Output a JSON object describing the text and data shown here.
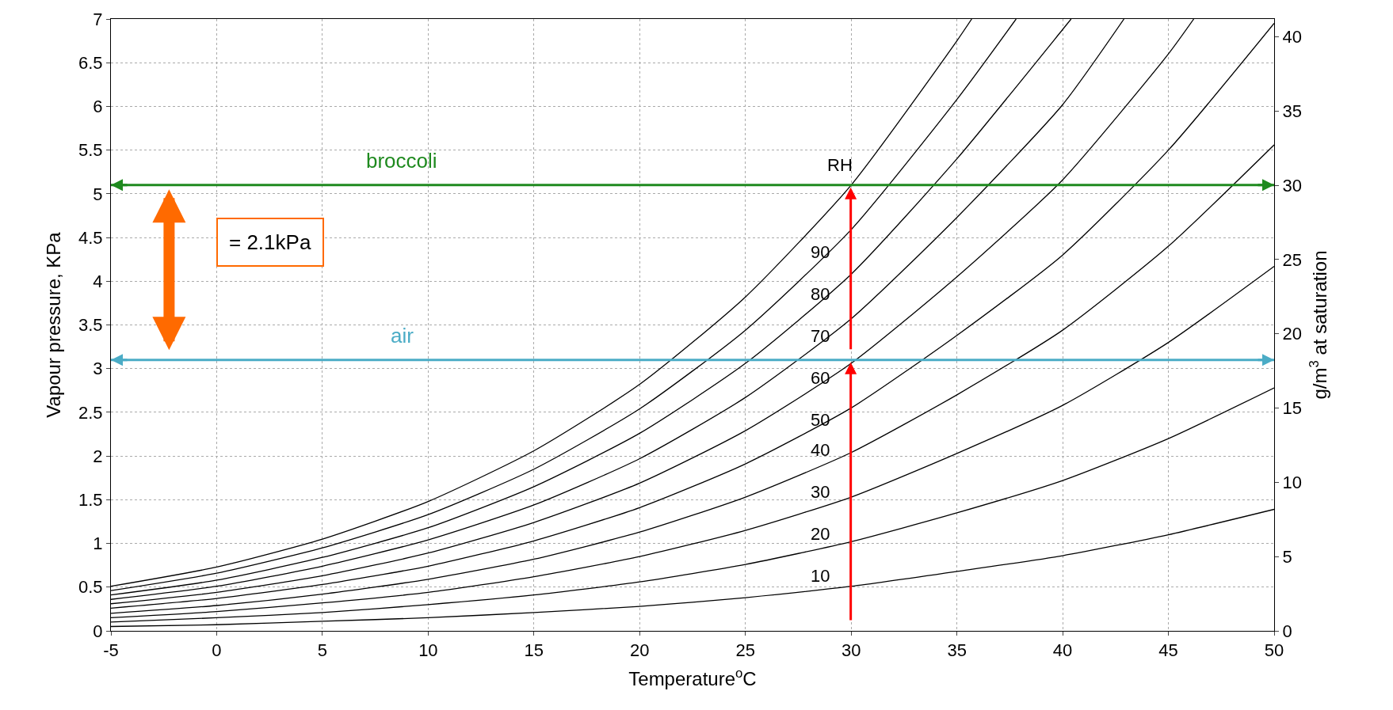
{
  "chart_data": {
    "type": "line",
    "xlabel": "Temperature$^{o}$C",
    "ylabel": "Vapour pressure, KPa",
    "y2label": "g/m$^{3}$ at saturation",
    "x": [
      -5,
      0,
      5,
      10,
      15,
      20,
      25,
      30,
      35,
      40,
      45,
      50
    ],
    "series": [
      {
        "color": "#000000",
        "values": [
          0.05,
          0.07,
          0.11,
          0.15,
          0.21,
          0.28,
          0.38,
          0.51,
          0.68,
          0.86,
          1.1,
          1.39
        ]
      },
      {
        "color": "#000000",
        "values": [
          0.1,
          0.15,
          0.21,
          0.3,
          0.41,
          0.56,
          0.76,
          1.02,
          1.35,
          1.72,
          2.2,
          2.78
        ]
      },
      {
        "color": "#000000",
        "values": [
          0.15,
          0.22,
          0.32,
          0.44,
          0.62,
          0.85,
          1.15,
          1.53,
          2.03,
          2.58,
          3.3,
          4.17
        ]
      },
      {
        "color": "#000000",
        "values": [
          0.2,
          0.29,
          0.42,
          0.59,
          0.82,
          1.13,
          1.53,
          2.04,
          2.7,
          3.44,
          4.4,
          5.56
        ]
      },
      {
        "color": "#000000",
        "values": [
          0.26,
          0.37,
          0.53,
          0.74,
          1.03,
          1.41,
          1.91,
          2.55,
          3.38,
          4.3,
          5.5,
          6.95
        ]
      },
      {
        "color": "#000000",
        "x": [
          -5,
          0,
          5,
          10,
          15,
          20,
          25,
          30,
          35,
          40,
          45,
          46.2
        ],
        "values": [
          0.31,
          0.44,
          0.63,
          0.89,
          1.24,
          1.69,
          2.29,
          3.06,
          4.05,
          5.16,
          6.6,
          7
        ]
      },
      {
        "color": "#000000",
        "x": [
          -5,
          0,
          5,
          10,
          15,
          20,
          25,
          30,
          35,
          40,
          42.9
        ],
        "values": [
          0.36,
          0.51,
          0.74,
          1.04,
          1.44,
          1.97,
          2.67,
          3.57,
          4.73,
          6.02,
          7
        ]
      },
      {
        "color": "#000000",
        "x": [
          -5,
          0,
          5,
          10,
          15,
          20,
          25,
          30,
          35,
          40,
          40.4
        ],
        "values": [
          0.41,
          0.58,
          0.84,
          1.18,
          1.65,
          2.26,
          3.06,
          4.08,
          5.4,
          6.88,
          7
        ]
      },
      {
        "color": "#000000",
        "x": [
          -5,
          0,
          5,
          10,
          15,
          20,
          25,
          30,
          35,
          37.8
        ],
        "values": [
          0.46,
          0.66,
          0.95,
          1.33,
          1.85,
          2.54,
          3.44,
          4.59,
          6.08,
          7
        ]
      },
      {
        "color": "#000000",
        "x": [
          -5,
          0,
          5,
          10,
          15,
          20,
          25,
          30,
          35,
          35.7
        ],
        "values": [
          0.51,
          0.73,
          1.05,
          1.48,
          2.06,
          2.82,
          3.82,
          5.1,
          6.75,
          7
        ]
      }
    ],
    "ref_lines": [
      {
        "axis": "y",
        "value": 5.1,
        "label": "broccoli",
        "color": "#1f8a1f"
      },
      {
        "axis": "y",
        "value": 3.1,
        "label": "air",
        "color": "#4bacc6"
      }
    ],
    "annotations": [
      "= 2.1kPa",
      "RH",
      "90",
      "80",
      "70",
      "60",
      "50",
      "40",
      "30",
      "20",
      "10"
    ],
    "xlim": [
      -5,
      50
    ],
    "xticks": [
      -5,
      0,
      5,
      10,
      15,
      20,
      25,
      30,
      35,
      40,
      45,
      50
    ],
    "ylim": [
      0,
      7
    ],
    "yticks": [
      0,
      0.5,
      1,
      1.5,
      2,
      2.5,
      3,
      3.5,
      4,
      4.5,
      5,
      5.5,
      6,
      6.5,
      7
    ],
    "y2lim": [
      0,
      41.2
    ],
    "y2ticks": [
      0,
      5,
      10,
      15,
      20,
      25,
      30,
      35,
      40
    ],
    "grid": true,
    "legend": false,
    "marker": "none",
    "line_style": "solid"
  }
}
